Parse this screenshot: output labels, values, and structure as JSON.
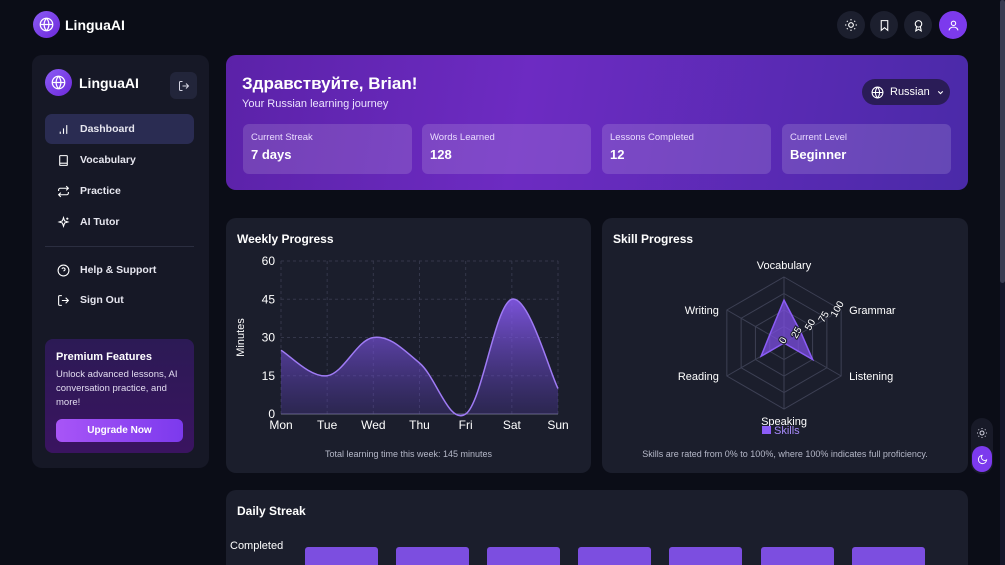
{
  "app": {
    "name": "LinguaAI"
  },
  "colors": {
    "accent": "#7c3aed",
    "accent_light": "#a855f7",
    "background": "#0b0d17",
    "card": "#1b1e2c"
  },
  "topbar": {
    "icons": [
      "sun-icon",
      "bookmark-icon",
      "award-icon",
      "user-icon"
    ]
  },
  "sidebar": {
    "brand": "LinguaAI",
    "items": [
      {
        "label": "Dashboard",
        "icon": "bar-chart-icon",
        "active": true
      },
      {
        "label": "Vocabulary",
        "icon": "book-icon"
      },
      {
        "label": "Practice",
        "icon": "repeat-icon"
      },
      {
        "label": "AI Tutor",
        "icon": "sparkles-icon"
      }
    ],
    "secondary": [
      {
        "label": "Help & Support",
        "icon": "help-circle-icon"
      },
      {
        "label": "Sign Out",
        "icon": "log-out-icon"
      }
    ],
    "premium": {
      "title": "Premium Features",
      "text": "Unlock advanced lessons, AI conversation practice, and more!",
      "button": "Upgrade Now"
    }
  },
  "hero": {
    "greeting": "Здравствуйте, Brian!",
    "subtitle": "Your Russian learning journey",
    "language": "Russian",
    "stats": [
      {
        "label": "Current Streak",
        "value": "7 days"
      },
      {
        "label": "Words Learned",
        "value": "128"
      },
      {
        "label": "Lessons Completed",
        "value": "12"
      },
      {
        "label": "Current Level",
        "value": "Beginner"
      }
    ]
  },
  "weekly": {
    "title": "Weekly Progress",
    "note": "Total learning time this week: 145 minutes"
  },
  "skills": {
    "title": "Skill Progress",
    "note": "Skills are rated from 0% to 100%, where 100% indicates full proficiency."
  },
  "streak": {
    "title": "Daily Streak",
    "ylabel": "Completed"
  },
  "chart_data": [
    {
      "type": "area",
      "title": "Weekly Progress",
      "x": [
        "Mon",
        "Tue",
        "Wed",
        "Thu",
        "Fri",
        "Sat",
        "Sun"
      ],
      "values": [
        25,
        15,
        30,
        20,
        0,
        45,
        10
      ],
      "ylabel": "Minutes",
      "ylim": [
        0,
        60
      ],
      "yticks": [
        0,
        15,
        30,
        45,
        60
      ],
      "grid": true
    },
    {
      "type": "radar",
      "title": "Skill Progress",
      "axes": [
        "Vocabulary",
        "Grammar",
        "Listening",
        "Speaking",
        "Reading",
        "Writing"
      ],
      "series": [
        {
          "name": "Skills",
          "values": [
            65,
            30,
            50,
            0,
            40,
            25
          ]
        }
      ],
      "rlim": [
        0,
        100
      ],
      "rticks": [
        0,
        25,
        50,
        75,
        100
      ],
      "legend": "bottom"
    },
    {
      "type": "bar",
      "title": "Daily Streak",
      "ylabel": "Completed",
      "bar_count_visible": 7
    }
  ]
}
